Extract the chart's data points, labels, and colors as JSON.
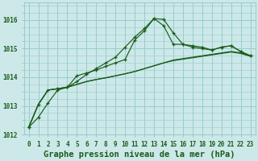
{
  "title": "Graphe pression niveau de la mer (hPa)",
  "background_color": "#cce8e8",
  "grid_color": "#99cccc",
  "line_color": "#1a5c1a",
  "xlim": [
    -0.5,
    23.5
  ],
  "ylim": [
    1012.0,
    1016.6
  ],
  "yticks": [
    1012,
    1013,
    1014,
    1015,
    1016
  ],
  "xtick_labels": [
    "0",
    "1",
    "2",
    "3",
    "4",
    "5",
    "6",
    "7",
    "8",
    "9",
    "10",
    "11",
    "12",
    "13",
    "14",
    "15",
    "16",
    "17",
    "18",
    "19",
    "20",
    "21",
    "22",
    "23"
  ],
  "series_main": [
    1012.25,
    1012.6,
    1013.1,
    1013.55,
    1013.65,
    1013.85,
    1014.1,
    1014.3,
    1014.5,
    1014.7,
    1015.05,
    1015.4,
    1015.7,
    1016.05,
    1015.8,
    1015.15,
    1015.15,
    1015.1,
    1015.05,
    1014.95,
    1015.05,
    1015.1,
    1014.9,
    1014.75
  ],
  "series_flat1": [
    1012.25,
    1013.05,
    1013.55,
    1013.6,
    1013.65,
    1013.75,
    1013.85,
    1013.92,
    1013.98,
    1014.05,
    1014.12,
    1014.2,
    1014.3,
    1014.4,
    1014.5,
    1014.6,
    1014.65,
    1014.7,
    1014.75,
    1014.8,
    1014.85,
    1014.9,
    1014.85,
    1014.75
  ],
  "series_flat2": [
    1012.25,
    1013.05,
    1013.55,
    1013.6,
    1013.65,
    1013.75,
    1013.85,
    1013.92,
    1013.98,
    1014.05,
    1014.12,
    1014.2,
    1014.3,
    1014.4,
    1014.5,
    1014.58,
    1014.63,
    1014.68,
    1014.73,
    1014.78,
    1014.83,
    1014.88,
    1014.83,
    1014.73
  ],
  "series_marked": [
    1012.25,
    1013.05,
    1013.55,
    1013.6,
    1013.65,
    1014.05,
    1014.15,
    1014.25,
    1014.38,
    1014.5,
    1014.62,
    1015.3,
    1015.62,
    1016.05,
    1016.02,
    1015.55,
    1015.15,
    1015.05,
    1015.0,
    1014.95,
    1015.05,
    1015.1,
    1014.9,
    1014.75
  ],
  "title_fontsize": 7.5,
  "tick_fontsize": 5.5
}
